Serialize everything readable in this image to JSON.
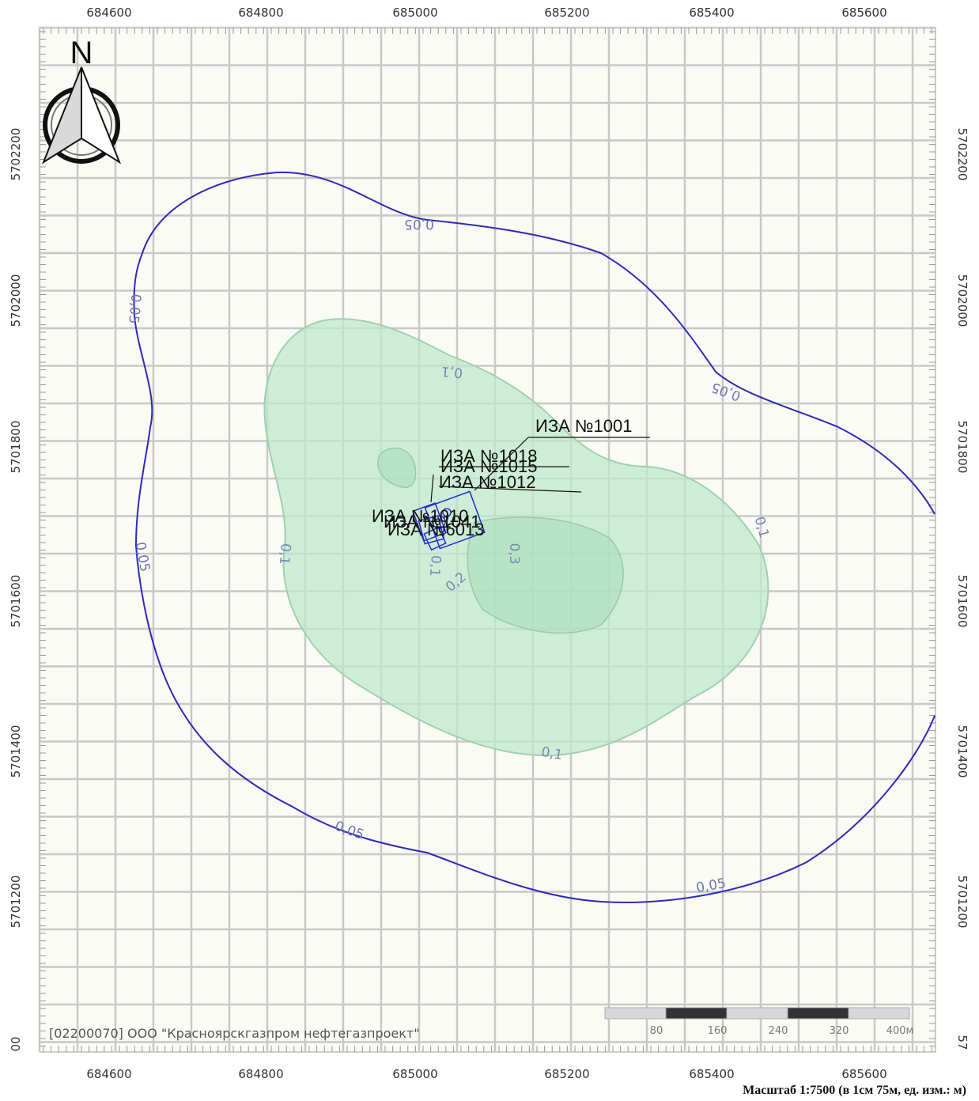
{
  "map": {
    "x_labels": [
      "684600",
      "684800",
      "685000",
      "685200",
      "685400",
      "685600"
    ],
    "y_labels": [
      "5702200",
      "5702000",
      "5701800",
      "5701600",
      "5701400",
      "5701200"
    ],
    "corner_labels": {
      "left": "00",
      "right": "57"
    },
    "north_label": "N",
    "isolines": {
      "outer_value": "0,05",
      "mid_value": "0,1",
      "inner_values": [
        "0,2",
        "0,3"
      ]
    },
    "sources": [
      "ИЗА №1001",
      "ИЗА №1018",
      "ИЗА №1015",
      "ИЗА №1012",
      "ИЗА №1010",
      "ИЗА №1041",
      "ИЗА №6013"
    ],
    "company": "[02200070] ООО \"Красноярскгазпром нефтегазпроект\"",
    "scale_bar": [
      "80",
      "160",
      "240",
      "320",
      "400м"
    ],
    "scale_text": "Масштаб 1:7500 (в 1см 75м, ед. изм.: м)",
    "colors": {
      "outer_isoline": "#2b2bb8",
      "zone_fill": "#bfe8cc",
      "zone_stroke": "#9fd0ad",
      "inner_zone": "#aee0bd",
      "grid": "#c8c8c8"
    }
  }
}
